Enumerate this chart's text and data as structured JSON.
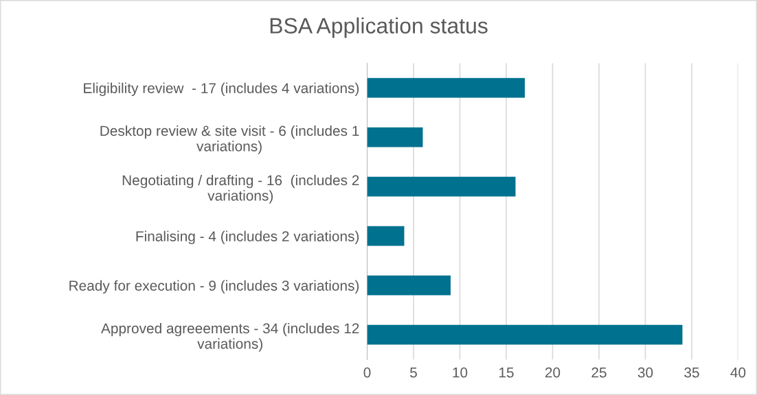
{
  "chart_data": {
    "type": "bar",
    "orientation": "horizontal",
    "title": "BSA Application status",
    "categories": [
      "Eligibility review  - 17 (includes 4 variations)",
      "Desktop review & site visit - 6 (includes 1\nvariations)",
      "Negotiating / drafting - 16  (includes 2\nvariations)",
      "Finalising - 4 (includes 2 variations)",
      "Ready for execution - 9 (includes 3 variations)",
      "Approved agreeements - 34 (includes 12\nvariations)"
    ],
    "values": [
      17,
      6,
      16,
      4,
      9,
      34
    ],
    "color": "#00718f",
    "xlim": [
      0,
      40
    ],
    "xticks": [
      0,
      5,
      10,
      15,
      20,
      25,
      30,
      35,
      40
    ],
    "grid": "x"
  }
}
